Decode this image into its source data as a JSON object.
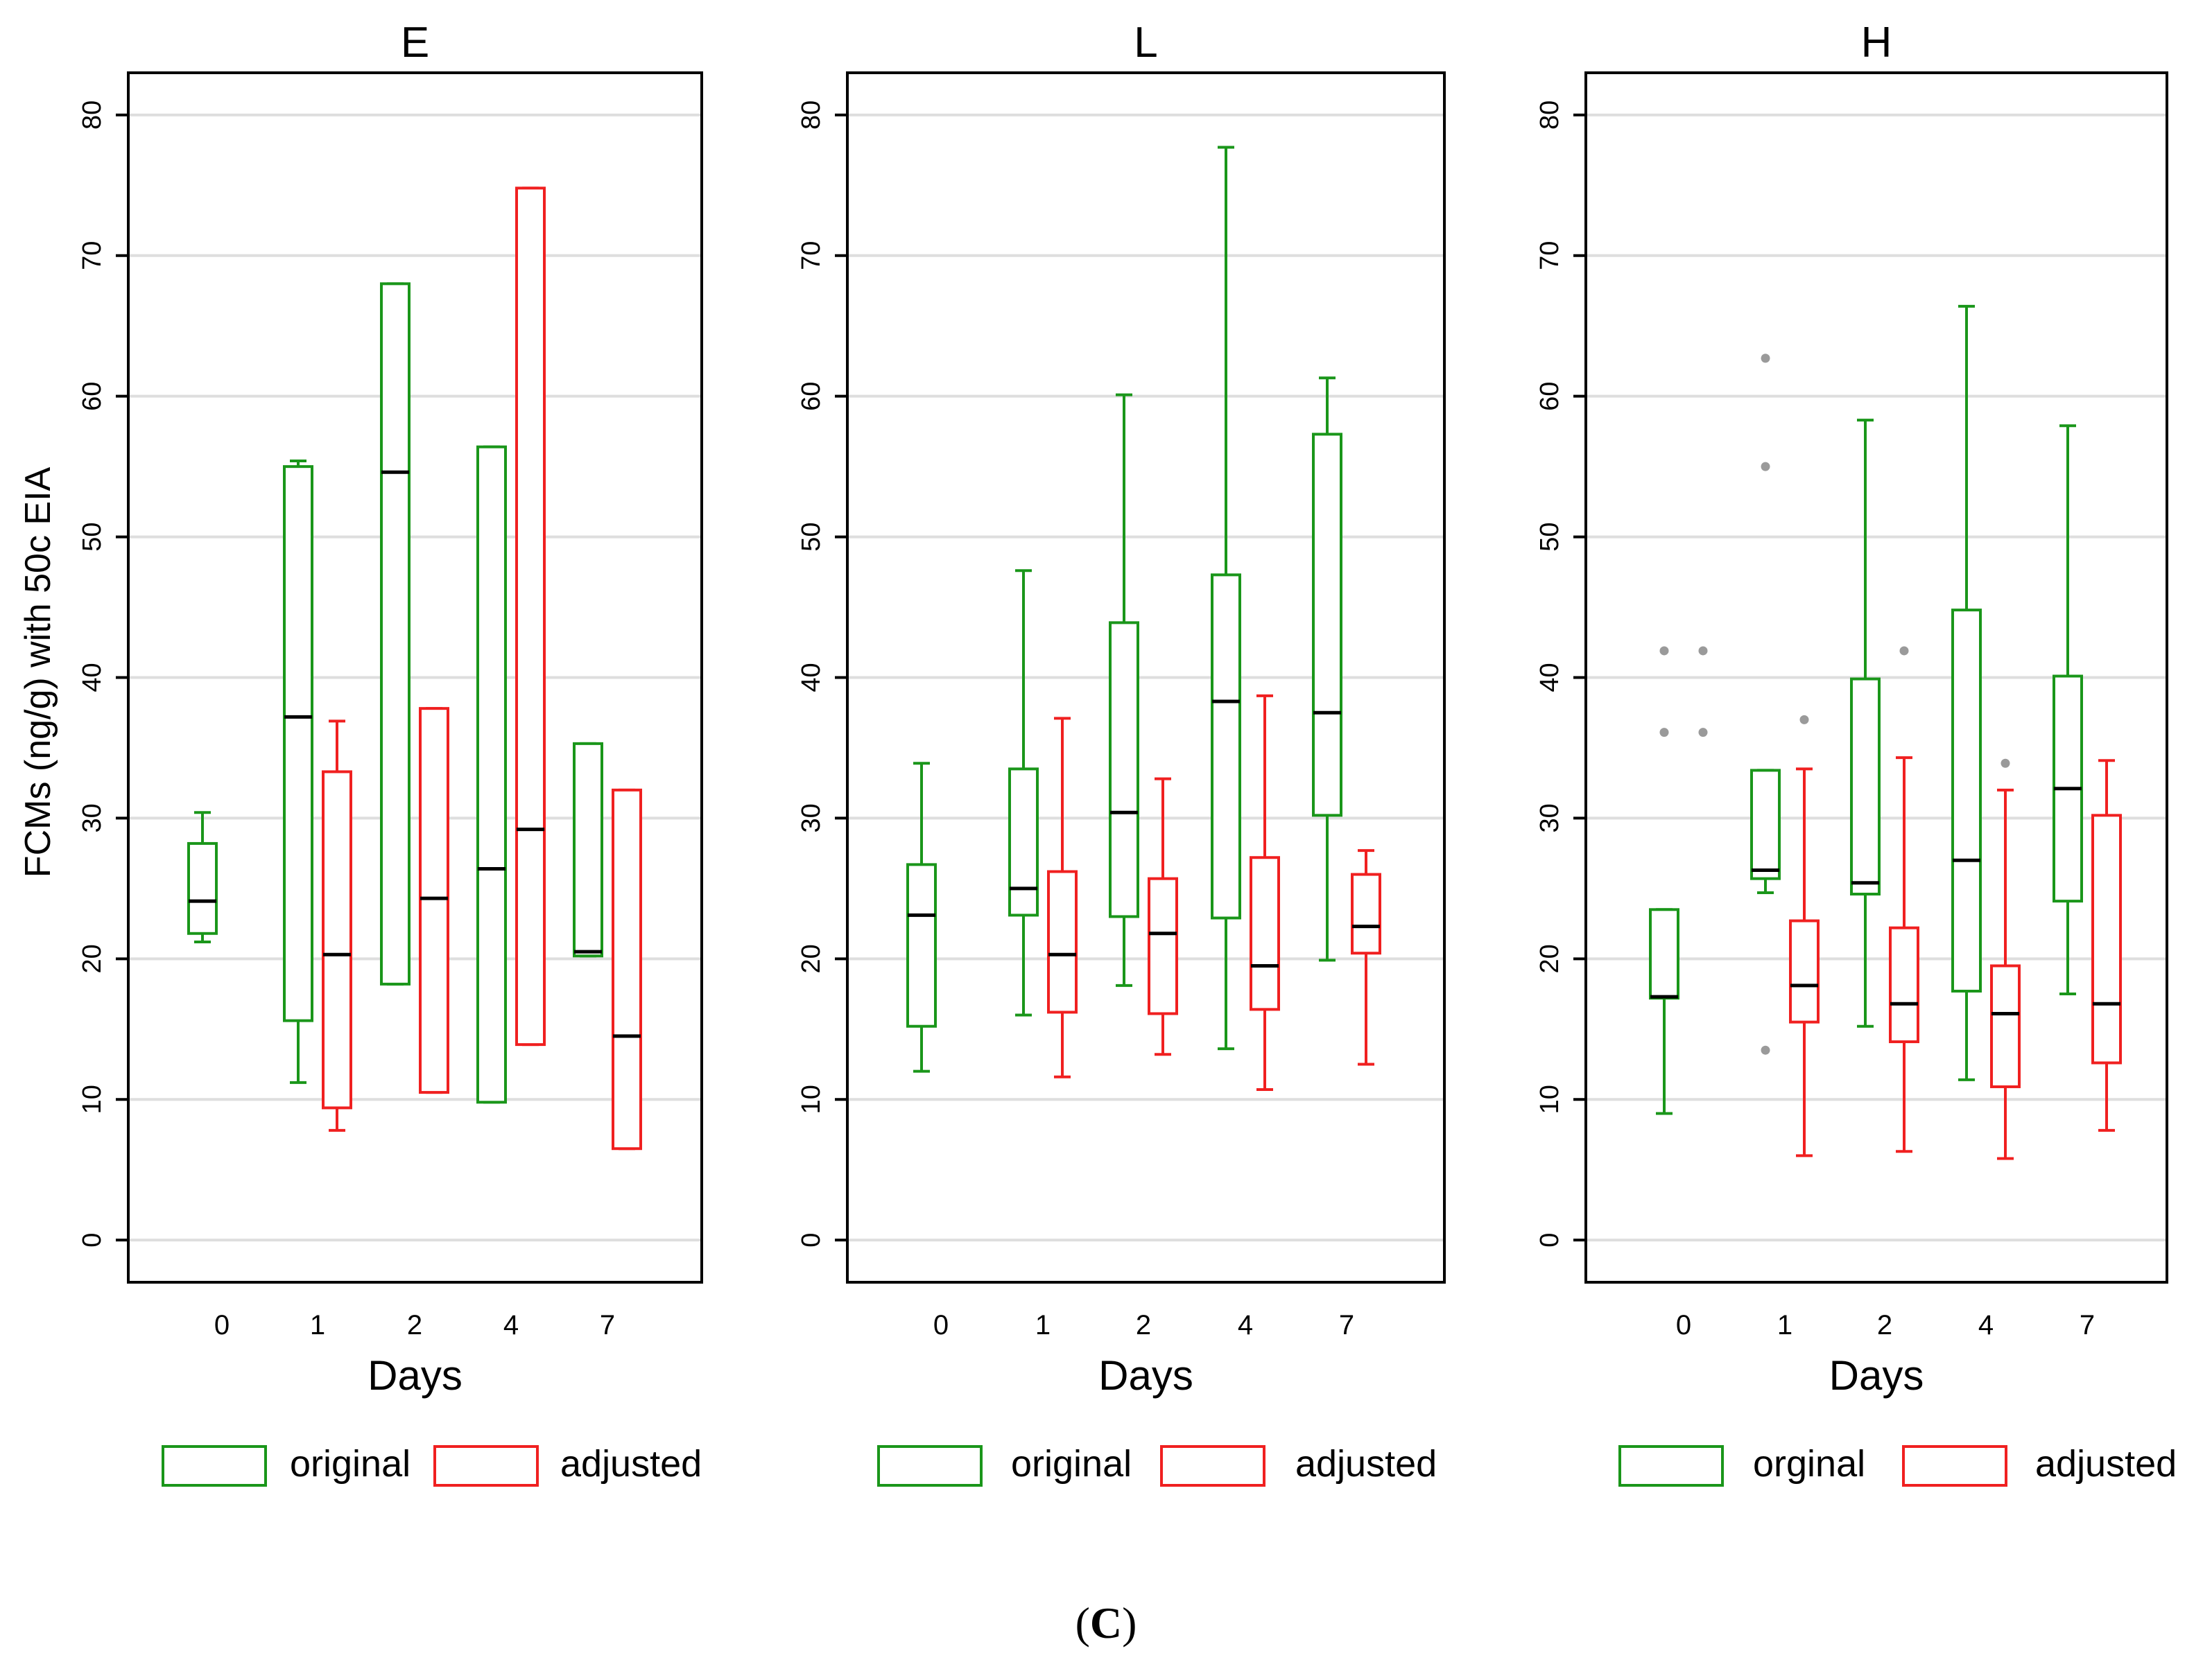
{
  "figure": {
    "caption_open": "(",
    "caption_letter": "C",
    "caption_close": ")"
  },
  "colors": {
    "original": "#1a961a",
    "adjusted": "#f02020",
    "median": "#000000",
    "outlier": "#9a9a9a",
    "grid": "#dedede"
  },
  "chart_data": [
    {
      "type": "box",
      "title": "E",
      "xlabel": "Days",
      "ylabel": "FCMs (ng/g) with 50c EIA",
      "ylim": [
        -3,
        83
      ],
      "yticks": [
        0,
        10,
        20,
        30,
        40,
        50,
        60,
        70,
        80
      ],
      "grid": true,
      "legend": [
        "original",
        "adjusted"
      ],
      "categories": [
        "0",
        "1",
        "2",
        "4",
        "7"
      ],
      "series": [
        {
          "name": "original",
          "color": "#1a961a",
          "boxes": [
            {
              "category": "0",
              "whisker_low": 21.2,
              "q1": 21.8,
              "median": 24.1,
              "q3": 28.2,
              "whisker_high": 30.4,
              "outliers": []
            },
            {
              "category": "1",
              "whisker_low": 11.2,
              "q1": 15.6,
              "median": 37.2,
              "q3": 55.0,
              "whisker_high": 55.4,
              "outliers": []
            },
            {
              "category": "2",
              "whisker_low": 18.2,
              "q1": 18.2,
              "median": 54.6,
              "q3": 68.0,
              "whisker_high": 68.0,
              "outliers": []
            },
            {
              "category": "4",
              "whisker_low": 9.8,
              "q1": 9.8,
              "median": 26.4,
              "q3": 56.4,
              "whisker_high": 56.4,
              "outliers": []
            },
            {
              "category": "7",
              "whisker_low": 20.2,
              "q1": 20.2,
              "median": 20.5,
              "q3": 35.3,
              "whisker_high": 35.3,
              "outliers": []
            }
          ]
        },
        {
          "name": "adjusted",
          "color": "#f02020",
          "boxes": [
            {
              "category": "1",
              "whisker_low": 7.8,
              "q1": 9.4,
              "median": 20.3,
              "q3": 33.3,
              "whisker_high": 36.9,
              "outliers": []
            },
            {
              "category": "2",
              "whisker_low": 10.5,
              "q1": 10.5,
              "median": 24.3,
              "q3": 37.8,
              "whisker_high": 37.8,
              "outliers": []
            },
            {
              "category": "4",
              "whisker_low": 13.9,
              "q1": 13.9,
              "median": 29.2,
              "q3": 74.8,
              "whisker_high": 74.8,
              "outliers": []
            },
            {
              "category": "7",
              "whisker_low": 6.5,
              "q1": 6.5,
              "median": 14.5,
              "q3": 32.0,
              "whisker_high": 32.0,
              "outliers": []
            }
          ]
        }
      ]
    },
    {
      "type": "box",
      "title": "L",
      "xlabel": "Days",
      "ylabel": "",
      "ylim": [
        -3,
        83
      ],
      "yticks": [
        0,
        10,
        20,
        30,
        40,
        50,
        60,
        70,
        80
      ],
      "grid": true,
      "legend": [
        "original",
        "adjusted"
      ],
      "categories": [
        "0",
        "1",
        "2",
        "4",
        "7"
      ],
      "series": [
        {
          "name": "original",
          "color": "#1a961a",
          "boxes": [
            {
              "category": "0",
              "whisker_low": 12.0,
              "q1": 15.2,
              "median": 23.1,
              "q3": 26.7,
              "whisker_high": 33.9,
              "outliers": []
            },
            {
              "category": "1",
              "whisker_low": 16.0,
              "q1": 23.1,
              "median": 25.0,
              "q3": 33.5,
              "whisker_high": 47.6,
              "outliers": []
            },
            {
              "category": "2",
              "whisker_low": 18.1,
              "q1": 23.0,
              "median": 30.4,
              "q3": 43.9,
              "whisker_high": 60.1,
              "outliers": []
            },
            {
              "category": "4",
              "whisker_low": 13.6,
              "q1": 22.9,
              "median": 38.3,
              "q3": 47.3,
              "whisker_high": 77.7,
              "outliers": []
            },
            {
              "category": "7",
              "whisker_low": 19.9,
              "q1": 30.2,
              "median": 37.5,
              "q3": 57.3,
              "whisker_high": 61.3,
              "outliers": []
            }
          ]
        },
        {
          "name": "adjusted",
          "color": "#f02020",
          "boxes": [
            {
              "category": "1",
              "whisker_low": 11.6,
              "q1": 16.2,
              "median": 20.3,
              "q3": 26.2,
              "whisker_high": 37.1,
              "outliers": []
            },
            {
              "category": "2",
              "whisker_low": 13.2,
              "q1": 16.1,
              "median": 21.8,
              "q3": 25.7,
              "whisker_high": 32.8,
              "outliers": []
            },
            {
              "category": "4",
              "whisker_low": 10.7,
              "q1": 16.4,
              "median": 19.5,
              "q3": 27.2,
              "whisker_high": 38.7,
              "outliers": []
            },
            {
              "category": "7",
              "whisker_low": 12.5,
              "q1": 20.4,
              "median": 22.3,
              "q3": 26.0,
              "whisker_high": 27.7,
              "outliers": []
            }
          ]
        }
      ]
    },
    {
      "type": "box",
      "title": "H",
      "xlabel": "Days",
      "ylabel": "",
      "ylim": [
        -3,
        83
      ],
      "yticks": [
        0,
        10,
        20,
        30,
        40,
        50,
        60,
        70,
        80
      ],
      "grid": true,
      "legend": [
        "orginal",
        "adjusted"
      ],
      "categories": [
        "0",
        "1",
        "2",
        "4",
        "7"
      ],
      "series": [
        {
          "name": "orginal",
          "color": "#1a961a",
          "boxes": [
            {
              "category": "0",
              "whisker_low": 9.0,
              "q1": 17.2,
              "median": 17.3,
              "q3": 23.5,
              "whisker_high": 23.5,
              "outliers": [
                36.1,
                41.9
              ]
            },
            {
              "category": "1",
              "whisker_low": 24.7,
              "q1": 25.7,
              "median": 26.3,
              "q3": 33.4,
              "whisker_high": 33.4,
              "outliers": [
                13.5,
                55.0,
                62.7
              ]
            },
            {
              "category": "2",
              "whisker_low": 15.2,
              "q1": 24.6,
              "median": 25.4,
              "q3": 39.9,
              "whisker_high": 58.3,
              "outliers": []
            },
            {
              "category": "4",
              "whisker_low": 11.4,
              "q1": 17.7,
              "median": 27.0,
              "q3": 44.8,
              "whisker_high": 66.4,
              "outliers": []
            },
            {
              "category": "7",
              "whisker_low": 17.5,
              "q1": 24.1,
              "median": 32.1,
              "q3": 40.1,
              "whisker_high": 57.9,
              "outliers": []
            }
          ]
        },
        {
          "name": "adjusted",
          "color": "#f02020",
          "boxes": [
            {
              "category": "0",
              "whisker_low": null,
              "q1": null,
              "median": null,
              "q3": null,
              "whisker_high": null,
              "outliers": [
                36.1,
                41.9
              ]
            },
            {
              "category": "1",
              "whisker_low": 6.0,
              "q1": 15.5,
              "median": 18.1,
              "q3": 22.7,
              "whisker_high": 33.5,
              "outliers": [
                37.0
              ]
            },
            {
              "category": "2",
              "whisker_low": 6.3,
              "q1": 14.1,
              "median": 16.8,
              "q3": 22.2,
              "whisker_high": 34.3,
              "outliers": [
                41.9
              ]
            },
            {
              "category": "4",
              "whisker_low": 5.8,
              "q1": 10.9,
              "median": 16.1,
              "q3": 19.5,
              "whisker_high": 32.0,
              "outliers": [
                33.9
              ]
            },
            {
              "category": "7",
              "whisker_low": 7.8,
              "q1": 12.6,
              "median": 16.8,
              "q3": 30.2,
              "whisker_high": 34.1,
              "outliers": []
            }
          ]
        }
      ]
    }
  ]
}
